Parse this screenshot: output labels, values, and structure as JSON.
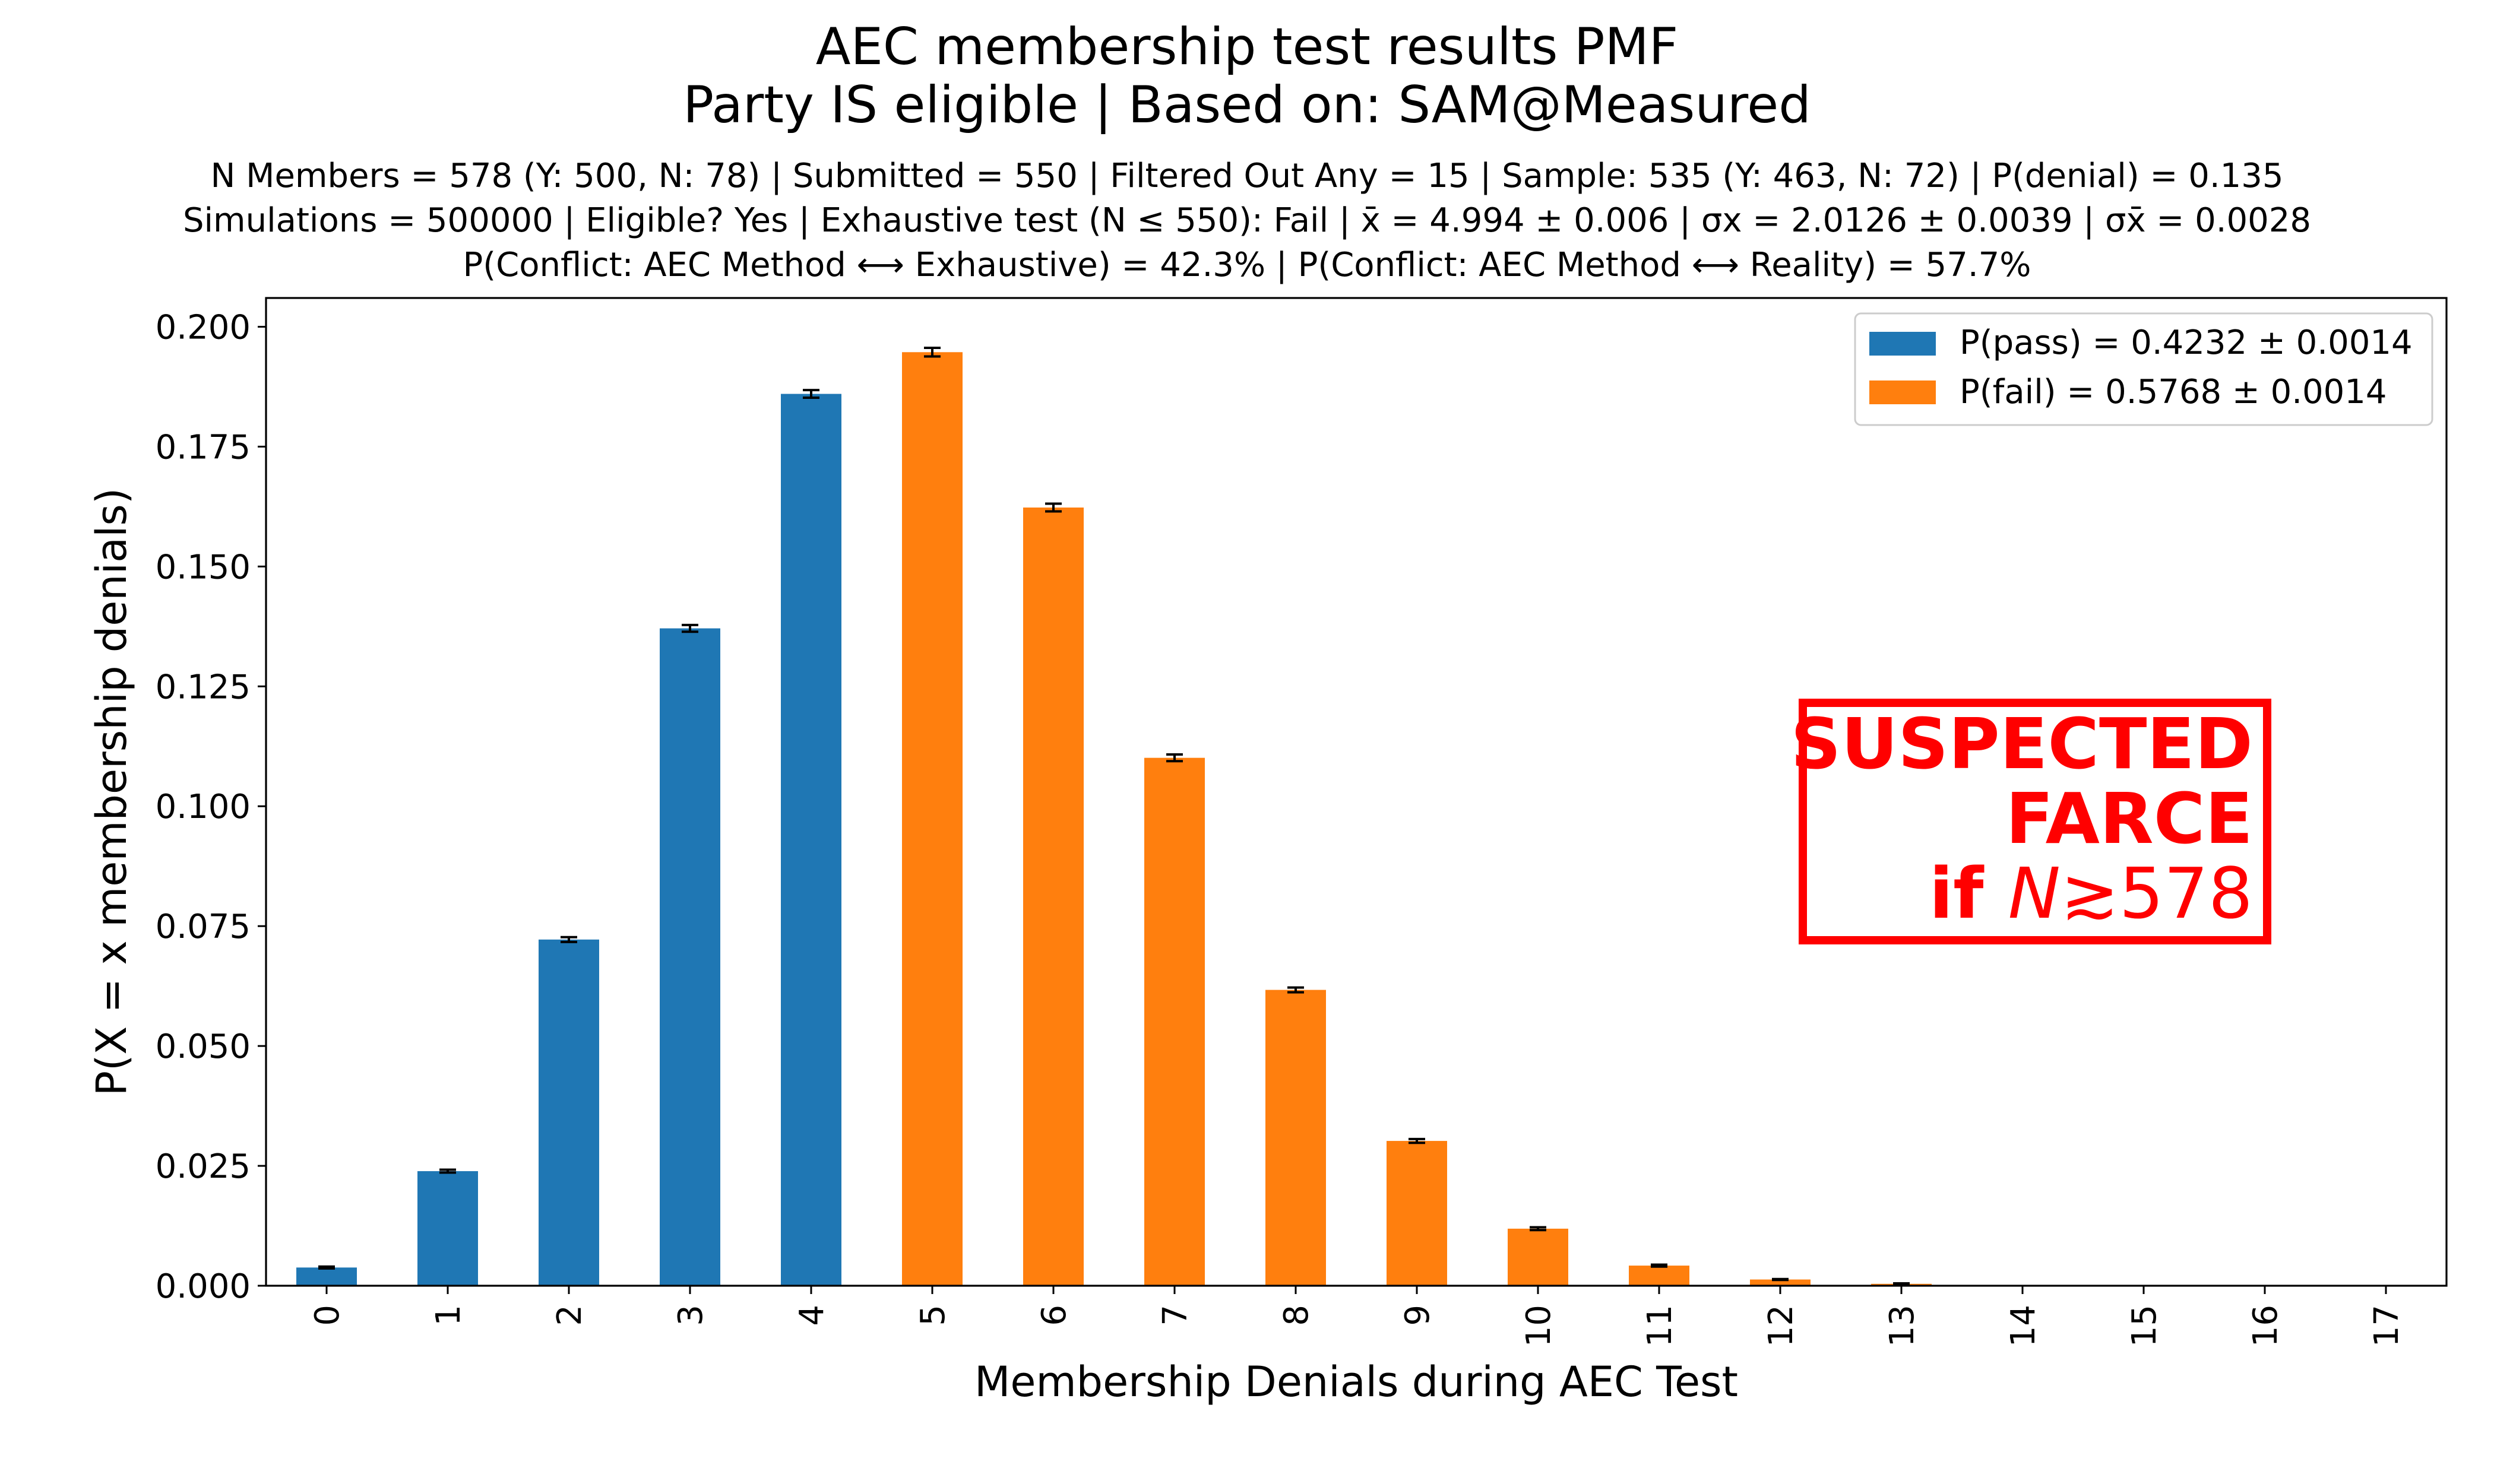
{
  "chart_data": {
    "type": "bar",
    "title": "AEC membership test results PMF",
    "subtitle": "Party IS eligible | Based on: SAM@Measured",
    "info_lines": [
      "N Members = 578 (Y: 500, N: 78) | Submitted = 550 | Filtered Out Any = 15 | Sample: 535 (Y: 463, N: 72) | P(denial) = 0.135",
      "Simulations = 500000 | Eligible? Yes | Exhaustive test (N ≤ 550): Fail | x̄ = 4.994 ± 0.006 | σx = 2.0126 ± 0.0039 | σx̄ = 0.0028",
      "P(Conflict: AEC Method ⟷ Exhaustive) = 42.3% | P(Conflict: AEC Method ⟷ Reality) = 57.7%"
    ],
    "xlabel": "Membership Denials during AEC Test",
    "ylabel": "P(X = x membership denials)",
    "ylim": [
      0,
      0.206
    ],
    "yticks": [
      "0.000",
      "0.025",
      "0.050",
      "0.075",
      "0.100",
      "0.125",
      "0.150",
      "0.175",
      "0.200"
    ],
    "categories": [
      "0",
      "1",
      "2",
      "3",
      "4",
      "5",
      "6",
      "7",
      "8",
      "9",
      "10",
      "11",
      "12",
      "13",
      "14",
      "15",
      "16",
      "17"
    ],
    "values": [
      0.0038,
      0.0239,
      0.0722,
      0.1371,
      0.186,
      0.1947,
      0.1623,
      0.1101,
      0.0617,
      0.0302,
      0.0119,
      0.0042,
      0.0013,
      0.0004,
      0.0001,
      2e-05,
      4e-06,
      1e-06
    ],
    "errors": [
      0.0002,
      0.0003,
      0.0005,
      0.0007,
      0.0008,
      0.0009,
      0.0008,
      0.0007,
      0.0005,
      0.0004,
      0.0003,
      0.0002,
      0.0001,
      0.0001,
      0,
      0,
      0,
      0
    ],
    "pass_max_category": 4,
    "series": [
      {
        "name": "P(pass) = 0.4232 ± 0.0014",
        "color": "#1f77b4"
      },
      {
        "name": "P(fail) = 0.5768 ± 0.0014",
        "color": "#ff7f0e"
      }
    ],
    "legend_position": "top-right",
    "grid": false,
    "annotation": {
      "line1": "SUSPECTED",
      "line2": "FARCE",
      "line3_prefix": "if ",
      "line3_var": "N",
      "line3_rel": "≳578",
      "color": "#ff0000"
    }
  }
}
